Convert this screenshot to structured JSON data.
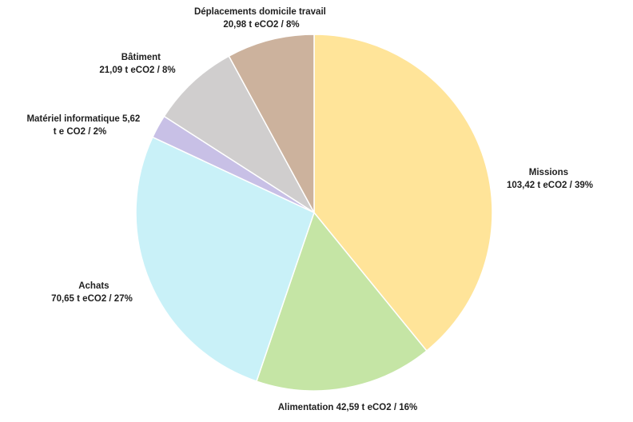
{
  "chart_data": {
    "type": "pie",
    "title": "",
    "start_angle_deg": 0,
    "direction": "clockwise",
    "slices": [
      {
        "name": "Missions",
        "value": 103.42,
        "value_text": "103,42 t eCO2 / 39%",
        "color": "#FFE499"
      },
      {
        "name": "Alimentation",
        "value": 42.59,
        "value_text": "Alimentation 42,59 t eCO2 / 16%",
        "color": "#C5E5A5"
      },
      {
        "name": "Achats",
        "value": 70.65,
        "value_text": "70,65 t eCO2 / 27%",
        "color": "#C9F1F8"
      },
      {
        "name": "Matériel informatique 5,62",
        "value": 5.62,
        "value_text": "t e CO2 / 2%",
        "color": "#C8C0E6"
      },
      {
        "name": "Bâtiment",
        "value": 21.09,
        "value_text": "21,09 t eCO2 / 8%",
        "color": "#D0CECE"
      },
      {
        "name": "Déplacements domicile travail",
        "value": 20.98,
        "value_text": "20,98 t eCO2 / 8%",
        "color": "#CCB29D"
      }
    ]
  }
}
